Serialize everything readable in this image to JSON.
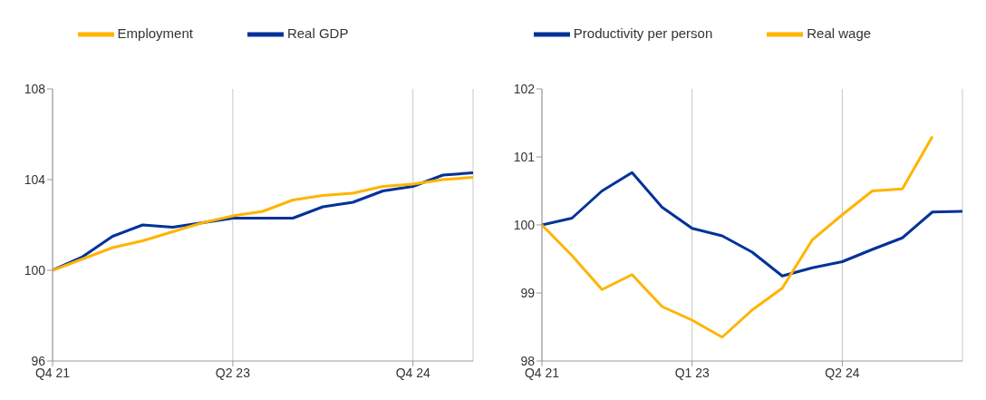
{
  "chart_data": [
    {
      "type": "line",
      "categories": [
        "Q4 21",
        null,
        null,
        null,
        null,
        null,
        "Q2 23",
        null,
        null,
        null,
        null,
        null,
        "Q4 24",
        null,
        null
      ],
      "ylim": [
        96,
        108
      ],
      "yticks": [
        96,
        100,
        104,
        108
      ],
      "grid": "x",
      "legend": "top",
      "marker": "none",
      "line_style": "solid",
      "series": [
        {
          "name": "Real GDP",
          "color": "#003299",
          "values": [
            100.0,
            100.6,
            101.5,
            102.0,
            101.9,
            102.1,
            102.3,
            102.3,
            102.3,
            102.8,
            103.0,
            103.5,
            103.7,
            104.2,
            104.3
          ]
        },
        {
          "name": "Employment",
          "color": "#ffb400",
          "values": [
            100.0,
            100.5,
            101.0,
            101.3,
            101.7,
            102.1,
            102.4,
            102.6,
            103.1,
            103.3,
            103.4,
            103.7,
            103.8,
            104.0,
            104.1
          ]
        }
      ]
    },
    {
      "type": "line",
      "categories": [
        "Q4 21",
        null,
        null,
        null,
        null,
        "Q1 23",
        null,
        null,
        null,
        null,
        "Q2 24",
        null,
        null,
        null,
        null
      ],
      "ylim": [
        98,
        102
      ],
      "yticks": [
        98,
        99,
        100,
        101,
        102
      ],
      "grid": "x",
      "legend": "top",
      "marker": "none",
      "line_style": "solid",
      "series": [
        {
          "name": "Productivity per person",
          "color": "#003299",
          "values": [
            100.0,
            100.1,
            100.5,
            100.77,
            100.26,
            99.95,
            99.84,
            99.6,
            99.25,
            99.37,
            99.46,
            99.64,
            99.81,
            100.19,
            100.2
          ]
        },
        {
          "name": "Real wage",
          "color": "#ffb400",
          "values": [
            100.0,
            99.55,
            99.05,
            99.27,
            98.8,
            98.6,
            98.35,
            98.75,
            99.07,
            99.78,
            100.15,
            100.5,
            100.53,
            101.3,
            null
          ]
        }
      ]
    }
  ]
}
